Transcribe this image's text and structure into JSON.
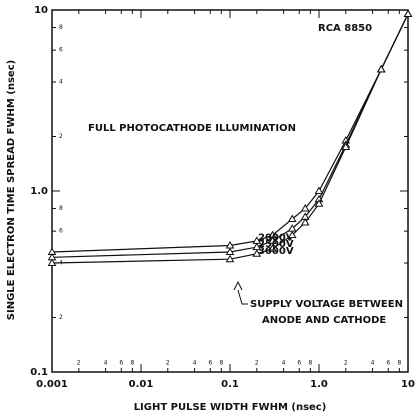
{
  "chart_data": {
    "type": "line",
    "title": "RCA 8850",
    "subtitle": "FULL PHOTOCATHODE ILLUMINATION",
    "annotation": [
      "SUPPLY VOLTAGE BETWEEN",
      "ANODE AND CATHODE"
    ],
    "x_label": "LIGHT PULSE WIDTH FWHM (nsec)",
    "y_label": "SINGLE ELECTRON TIME SPREAD FWHM (nsec)",
    "xscale": "log",
    "yscale": "log",
    "color": "#111111",
    "x": [
      0.001,
      0.1,
      0.2,
      0.3,
      0.5,
      0.7,
      1,
      2,
      5,
      10
    ],
    "series": [
      {
        "name": "2000V",
        "color": "#111111",
        "values": [
          0.46,
          0.5,
          0.53,
          0.57,
          0.7,
          0.8,
          1.0,
          1.9,
          4.7,
          9.5
        ]
      },
      {
        "name": "2500V",
        "color": "#111111",
        "values": [
          0.43,
          0.46,
          0.49,
          0.53,
          0.62,
          0.72,
          0.9,
          1.8,
          4.7,
          9.5
        ]
      },
      {
        "name": "3000V",
        "color": "#111111",
        "values": [
          0.4,
          0.42,
          0.45,
          0.48,
          0.57,
          0.67,
          0.85,
          1.75,
          4.7,
          9.5
        ]
      }
    ],
    "xlim": [
      0.001,
      10
    ],
    "ylim": [
      0.1,
      10
    ],
    "xticks": [
      0.001,
      {
        "value": 0.002,
        "label": "2"
      },
      {
        "value": 0.004,
        "label": "4"
      },
      {
        "value": 0.006,
        "label": "6"
      },
      {
        "value": 0.008,
        "label": "8"
      },
      0.01,
      {
        "value": 0.02,
        "label": "2"
      },
      {
        "value": 0.04,
        "label": "4"
      },
      {
        "value": 0.06,
        "label": "6"
      },
      {
        "value": 0.08,
        "label": "8"
      },
      0.1,
      {
        "value": 0.2,
        "label": "2"
      },
      {
        "value": 0.4,
        "label": "4"
      },
      {
        "value": 0.6,
        "label": "6"
      },
      {
        "value": 0.8,
        "label": "8"
      },
      {
        "value": 1,
        "label": "1.0"
      },
      {
        "value": 2,
        "label": "2"
      },
      {
        "value": 4,
        "label": "4"
      },
      {
        "value": 6,
        "label": "6"
      },
      {
        "value": 8,
        "label": "8"
      },
      10
    ],
    "yticks": [
      0.1,
      {
        "value": 0.2,
        "label": "2"
      },
      {
        "value": 0.4,
        "label": "4"
      },
      {
        "value": 0.6,
        "label": "6"
      },
      {
        "value": 0.8,
        "label": "8"
      },
      {
        "value": 1,
        "label": "1.0"
      },
      {
        "value": 2,
        "label": "2"
      },
      {
        "value": 4,
        "label": "4"
      },
      {
        "value": 6,
        "label": "6"
      },
      {
        "value": 8,
        "label": "8"
      },
      10
    ]
  }
}
